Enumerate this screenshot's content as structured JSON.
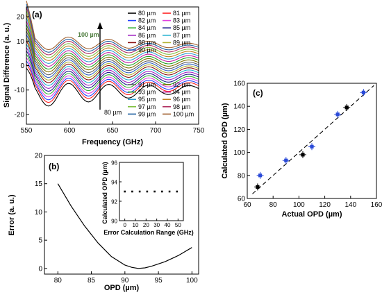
{
  "chart_data": [
    {
      "type": "line",
      "panel_label": "(a)",
      "xlabel": "Frequency (GHz)",
      "ylabel": "Signal Difference  (a. u.)",
      "xlim": [
        550,
        750
      ],
      "ylim": [
        -24,
        24
      ],
      "xticks": [
        550,
        600,
        650,
        700,
        750
      ],
      "yticks": [
        -20,
        -10,
        0,
        10,
        20
      ],
      "annotation_top": "100 µm",
      "annotation_bottom": "80 µm",
      "legend_top": [
        {
          "name": "80 µm",
          "color": "#000000"
        },
        {
          "name": "81 µm",
          "color": "#ff2020"
        },
        {
          "name": "82 µm",
          "color": "#2040ff"
        },
        {
          "name": "83 µm",
          "color": "#e040e0"
        },
        {
          "name": "84 µm",
          "color": "#30b030"
        },
        {
          "name": "85 µm",
          "color": "#1a1a8a"
        },
        {
          "name": "86 µm",
          "color": "#a020c0"
        },
        {
          "name": "87 µm",
          "color": "#20b0d0"
        },
        {
          "name": "88 µm",
          "color": "#8a1010"
        },
        {
          "name": "89 µm",
          "color": "#b0b030"
        },
        {
          "name": "90 µm",
          "color": "#3060c0"
        }
      ],
      "legend_bottom": [
        {
          "name": "91 µm",
          "color": "#606060"
        },
        {
          "name": "92 µm",
          "color": "#807000"
        },
        {
          "name": "93 µm",
          "color": "#20a020"
        },
        {
          "name": "94 µm",
          "color": "#c020a0"
        },
        {
          "name": "95 µm",
          "color": "#30a0d0"
        },
        {
          "name": "96 µm",
          "color": "#c08020"
        },
        {
          "name": "97 µm",
          "color": "#80c040"
        },
        {
          "name": "98 µm",
          "color": "#b03060"
        },
        {
          "name": "99 µm",
          "color": "#2060a0"
        },
        {
          "name": "100 µm",
          "color": "#a06030"
        }
      ],
      "series_offsets": [
        -9.5,
        -8.3,
        -7.5,
        -6.6,
        -5.7,
        -4.8,
        -3.9,
        -3.0,
        -2.1,
        -1.3,
        -0.5,
        0.3,
        1.2,
        2.1,
        3.0,
        3.9,
        4.8,
        5.7,
        6.6,
        7.4,
        8.2
      ]
    },
    {
      "type": "line",
      "panel_label": "(b)",
      "xlabel": "OPD (µm)",
      "ylabel": "Error (a. u.)",
      "xlim": [
        78,
        101
      ],
      "ylim": [
        -1,
        20
      ],
      "xticks": [
        80,
        85,
        90,
        95,
        100
      ],
      "yticks": [
        0,
        5,
        10,
        15,
        20
      ],
      "series": [
        {
          "x": [
            80,
            82,
            84,
            86,
            88,
            90,
            91,
            92,
            93,
            94,
            96,
            98,
            100
          ],
          "y": [
            15.0,
            11.0,
            7.5,
            4.5,
            2.1,
            0.6,
            0.2,
            0.0,
            0.1,
            0.4,
            1.2,
            2.3,
            3.7
          ]
        }
      ]
    },
    {
      "type": "scatter",
      "panel_label": "inset",
      "xlabel": "Error Calculation Range (GHz)",
      "ylabel": "Calculated OPD (µm)",
      "xlim": [
        -5,
        55
      ],
      "ylim": [
        90,
        96
      ],
      "xticks": [
        0,
        10,
        20,
        30,
        40,
        50
      ],
      "yticks": [
        90,
        92,
        94,
        96
      ],
      "series": [
        {
          "x": [
            0,
            7,
            14,
            21,
            28,
            35,
            42,
            49
          ],
          "y": [
            93,
            93,
            93,
            93,
            93,
            93,
            93,
            93
          ]
        }
      ]
    },
    {
      "type": "scatter",
      "panel_label": "(c)",
      "xlabel": "Actual OPD (µm)",
      "ylabel": "Calculated OPD (µm)",
      "xlim": [
        60,
        160
      ],
      "ylim": [
        60,
        160
      ],
      "xticks": [
        60,
        80,
        100,
        120,
        140,
        160
      ],
      "yticks": [
        60,
        80,
        100,
        120,
        140,
        160
      ],
      "series": [
        {
          "color": "#2a4ad8",
          "x": [
            70,
            90,
            110,
            130,
            150
          ],
          "y": [
            80,
            93,
            105,
            133,
            152
          ]
        },
        {
          "color": "#000000",
          "x": [
            68,
            103,
            137
          ],
          "y": [
            70,
            98,
            139
          ]
        }
      ],
      "reference_line": {
        "x": [
          60,
          160
        ],
        "y": [
          60,
          160
        ],
        "style": "dashed"
      }
    }
  ]
}
